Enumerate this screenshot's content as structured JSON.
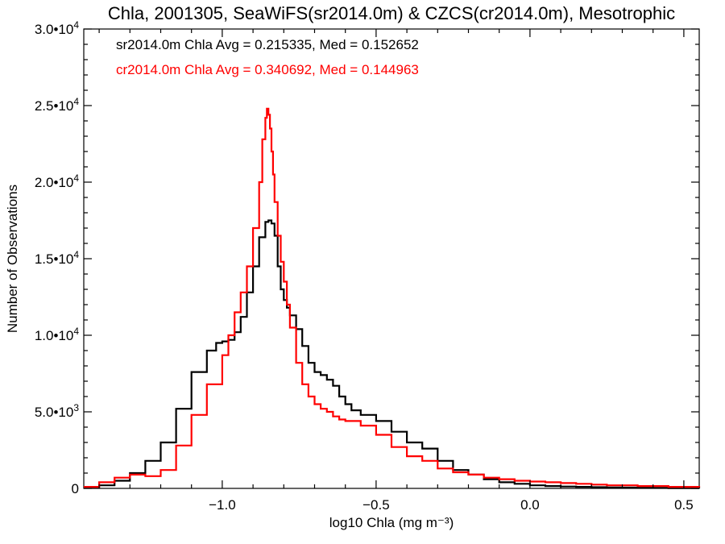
{
  "chart_data": {
    "type": "line",
    "step": true,
    "title": "Chla, 2001305, SeaWiFS(sr2014.0m) & CZCS(cr2014.0m), Mesotrophic",
    "xlabel": "log10 Chla (mg m⁻³)",
    "ylabel": "Number of Observations",
    "xlim": [
      -1.45,
      0.55
    ],
    "ylim": [
      0,
      30000
    ],
    "x_ticks": [
      {
        "value": -1.0,
        "label": "−1.0"
      },
      {
        "value": -0.5,
        "label": "−0.5"
      },
      {
        "value": 0.0,
        "label": "0.0"
      },
      {
        "value": 0.5,
        "label": "0.5"
      }
    ],
    "y_ticks": [
      {
        "value": 0,
        "mantissa": "0",
        "exp": ""
      },
      {
        "value": 5000,
        "mantissa": "5.0•10",
        "exp": "3"
      },
      {
        "value": 10000,
        "mantissa": "1.0•10",
        "exp": "4"
      },
      {
        "value": 15000,
        "mantissa": "1.5•10",
        "exp": "4"
      },
      {
        "value": 20000,
        "mantissa": "2.0•10",
        "exp": "4"
      },
      {
        "value": 25000,
        "mantissa": "2.5•10",
        "exp": "4"
      },
      {
        "value": 30000,
        "mantissa": "3.0•10",
        "exp": "4"
      }
    ],
    "grid": false,
    "annotations": [
      {
        "text": "sr2014.0m Chla Avg = 0.215335, Med = 0.152652",
        "color": "#000000"
      },
      {
        "text": "cr2014.0m Chla Avg = 0.340692, Med = 0.144963",
        "color": "#ff0000"
      }
    ],
    "series": [
      {
        "id": "sr2014",
        "color": "#000000",
        "x": [
          -1.45,
          -1.4,
          -1.35,
          -1.3,
          -1.25,
          -1.2,
          -1.15,
          -1.1,
          -1.05,
          -1.02,
          -1.0,
          -0.98,
          -0.96,
          -0.94,
          -0.92,
          -0.9,
          -0.88,
          -0.86,
          -0.85,
          -0.84,
          -0.83,
          -0.82,
          -0.81,
          -0.8,
          -0.79,
          -0.78,
          -0.76,
          -0.74,
          -0.72,
          -0.7,
          -0.68,
          -0.66,
          -0.64,
          -0.62,
          -0.6,
          -0.58,
          -0.55,
          -0.5,
          -0.45,
          -0.4,
          -0.35,
          -0.3,
          -0.25,
          -0.2,
          -0.15,
          -0.1,
          -0.05,
          0.0,
          0.05,
          0.1,
          0.15,
          0.2,
          0.25,
          0.3,
          0.35,
          0.4,
          0.45,
          0.5,
          0.55
        ],
        "y": [
          50,
          200,
          500,
          1000,
          1800,
          3000,
          5200,
          7600,
          9000,
          9500,
          9600,
          9700,
          10200,
          11200,
          12800,
          14500,
          16400,
          17400,
          17500,
          17300,
          16500,
          14500,
          13000,
          12300,
          11800,
          11300,
          10400,
          9300,
          8200,
          7600,
          7400,
          7100,
          6700,
          6000,
          5500,
          5100,
          4800,
          4400,
          3700,
          3000,
          2600,
          1800,
          1200,
          900,
          600,
          400,
          300,
          200,
          150,
          120,
          100,
          80,
          60,
          50,
          40,
          30,
          20,
          15,
          10
        ]
      },
      {
        "id": "cr2014",
        "color": "#ff0000",
        "x": [
          -1.45,
          -1.4,
          -1.35,
          -1.3,
          -1.25,
          -1.2,
          -1.15,
          -1.1,
          -1.05,
          -1.0,
          -0.98,
          -0.96,
          -0.94,
          -0.92,
          -0.9,
          -0.88,
          -0.87,
          -0.86,
          -0.855,
          -0.85,
          -0.845,
          -0.84,
          -0.835,
          -0.83,
          -0.82,
          -0.81,
          -0.8,
          -0.79,
          -0.78,
          -0.76,
          -0.74,
          -0.72,
          -0.7,
          -0.68,
          -0.66,
          -0.64,
          -0.62,
          -0.6,
          -0.55,
          -0.5,
          -0.45,
          -0.4,
          -0.35,
          -0.3,
          -0.25,
          -0.2,
          -0.15,
          -0.1,
          -0.05,
          0.0,
          0.05,
          0.1,
          0.15,
          0.2,
          0.25,
          0.3,
          0.35,
          0.4,
          0.45,
          0.5,
          0.55
        ],
        "y": [
          100,
          400,
          700,
          900,
          800,
          1200,
          2800,
          4800,
          6800,
          8700,
          10000,
          11500,
          12800,
          14500,
          17000,
          20000,
          22800,
          24200,
          24800,
          24400,
          23500,
          22000,
          20500,
          18700,
          16500,
          14800,
          13500,
          12000,
          10500,
          8200,
          6800,
          6000,
          5500,
          5200,
          5000,
          4700,
          4500,
          4400,
          4100,
          3500,
          2700,
          2100,
          1800,
          1300,
          1050,
          900,
          700,
          600,
          500,
          450,
          400,
          350,
          300,
          250,
          200,
          200,
          150,
          150,
          100,
          100,
          80
        ]
      }
    ]
  }
}
